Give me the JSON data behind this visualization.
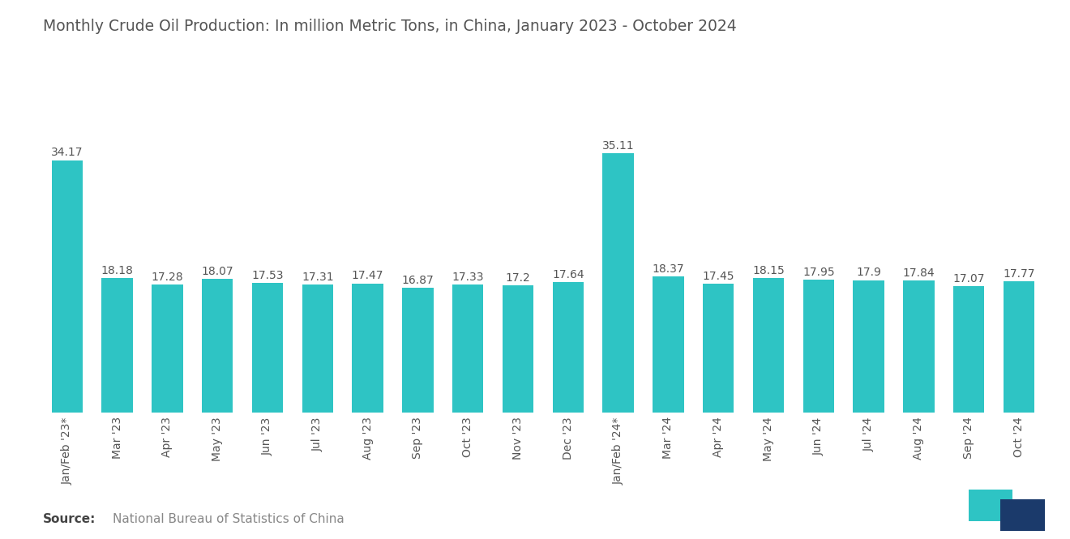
{
  "title": "Monthly Crude Oil Production: In million Metric Tons, in China, January 2023 - October 2024",
  "categories": [
    "Jan/Feb '23*",
    "Mar '23",
    "Apr '23",
    "May '23",
    "Jun '23",
    "Jul '23",
    "Aug '23",
    "Sep '23",
    "Oct '23",
    "Nov '23",
    "Dec '23",
    "Jan/Feb '24*",
    "Mar '24",
    "Apr '24",
    "May '24",
    "Jun '24",
    "Jul '24",
    "Aug '24",
    "Sep '24",
    "Oct '24"
  ],
  "values": [
    34.17,
    18.18,
    17.28,
    18.07,
    17.53,
    17.31,
    17.47,
    16.87,
    17.33,
    17.2,
    17.64,
    35.11,
    18.37,
    17.45,
    18.15,
    17.95,
    17.9,
    17.84,
    17.07,
    17.77
  ],
  "bar_color": "#2EC4C4",
  "label_color": "#555555",
  "title_color": "#555555",
  "background_color": "#ffffff",
  "source_bold": "Source:",
  "source_text": "National Bureau of Statistics of China",
  "source_color": "#888888",
  "title_fontsize": 13.5,
  "label_fontsize": 10.0,
  "xtick_fontsize": 10.0,
  "source_fontsize": 11,
  "logo_teal": "#2EC4C4",
  "logo_navy": "#1B3A6B"
}
